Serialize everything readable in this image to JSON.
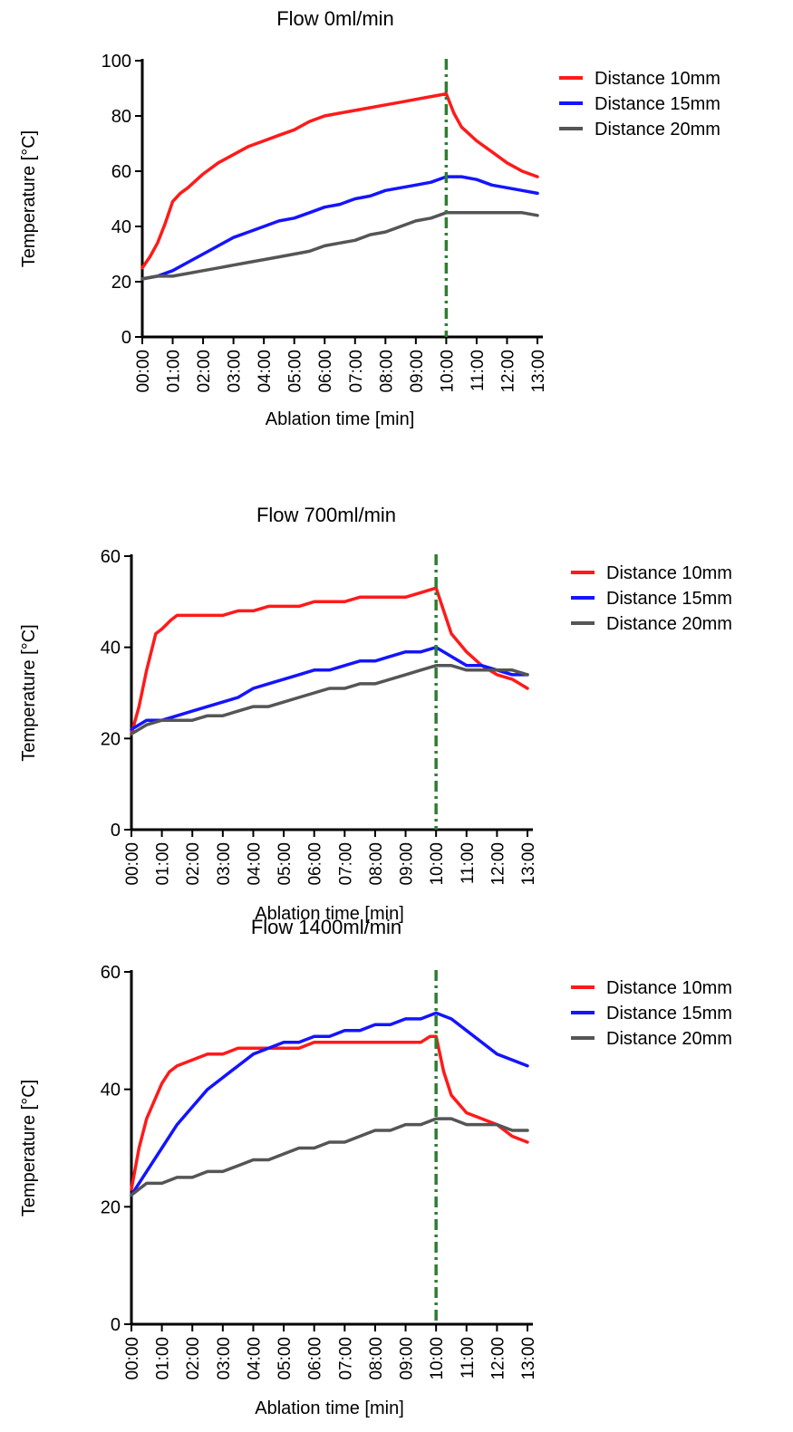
{
  "chart_data": [
    {
      "type": "line",
      "title": "Flow 0ml/min",
      "xlabel": "Ablation time [min]",
      "ylabel": "Temperature [°C]",
      "x_ticks": [
        "00:00",
        "01:00",
        "02:00",
        "03:00",
        "04:00",
        "05:00",
        "06:00",
        "07:00",
        "08:00",
        "09:00",
        "10:00",
        "11:00",
        "12:00",
        "13:00"
      ],
      "xlim": [
        0,
        13
      ],
      "ylim": [
        0,
        100
      ],
      "y_ticks": [
        0,
        20,
        40,
        60,
        80,
        100
      ],
      "marker_line": {
        "x": 10,
        "color": "#2e7d32",
        "style": "dash-dot"
      },
      "legend_position": "right",
      "series": [
        {
          "name": "Distance 10mm",
          "color": "#ff1a1a",
          "x": [
            0,
            0.25,
            0.5,
            0.75,
            1,
            1.25,
            1.5,
            2,
            2.5,
            3,
            3.5,
            4,
            4.5,
            5,
            5.5,
            6,
            6.5,
            7,
            7.5,
            8,
            8.5,
            9,
            9.5,
            10,
            10.25,
            10.5,
            11,
            11.5,
            12,
            12.5,
            13
          ],
          "y": [
            25,
            29,
            34,
            41,
            49,
            52,
            54,
            59,
            63,
            66,
            69,
            71,
            73,
            75,
            78,
            80,
            81,
            82,
            83,
            84,
            85,
            86,
            87,
            88,
            81,
            76,
            71,
            67,
            63,
            60,
            58
          ]
        },
        {
          "name": "Distance 15mm",
          "color": "#1414ff",
          "x": [
            0,
            0.5,
            1,
            1.5,
            2,
            2.5,
            3,
            3.5,
            4,
            4.5,
            5,
            5.5,
            6,
            6.5,
            7,
            7.5,
            8,
            8.5,
            9,
            9.5,
            10,
            10.5,
            11,
            11.5,
            12,
            12.5,
            13
          ],
          "y": [
            21,
            22,
            24,
            27,
            30,
            33,
            36,
            38,
            40,
            42,
            43,
            45,
            47,
            48,
            50,
            51,
            53,
            54,
            55,
            56,
            58,
            58,
            57,
            55,
            54,
            53,
            52
          ]
        },
        {
          "name": "Distance 20mm",
          "color": "#555555",
          "x": [
            0,
            0.5,
            1,
            1.5,
            2,
            2.5,
            3,
            3.5,
            4,
            4.5,
            5,
            5.5,
            6,
            6.5,
            7,
            7.5,
            8,
            8.5,
            9,
            9.5,
            10,
            10.5,
            11,
            11.5,
            12,
            12.5,
            13
          ],
          "y": [
            21,
            22,
            22,
            23,
            24,
            25,
            26,
            27,
            28,
            29,
            30,
            31,
            33,
            34,
            35,
            37,
            38,
            40,
            42,
            43,
            45,
            45,
            45,
            45,
            45,
            45,
            44
          ]
        }
      ]
    },
    {
      "type": "line",
      "title": "Flow 700ml/min",
      "xlabel": "Ablation time [min]",
      "ylabel": "Temperature [°C]",
      "x_ticks": [
        "00:00",
        "01:00",
        "02:00",
        "03:00",
        "04:00",
        "05:00",
        "06:00",
        "07:00",
        "08:00",
        "09:00",
        "10:00",
        "11:00",
        "12:00",
        "13:00"
      ],
      "xlim": [
        0,
        13
      ],
      "ylim": [
        0,
        60
      ],
      "y_ticks": [
        0,
        20,
        40,
        60
      ],
      "marker_line": {
        "x": 10,
        "color": "#2e7d32",
        "style": "dash-dot"
      },
      "legend_position": "right",
      "series": [
        {
          "name": "Distance 10mm",
          "color": "#ff1a1a",
          "x": [
            0,
            0.25,
            0.5,
            0.8,
            1,
            1.3,
            1.5,
            2,
            2.5,
            3,
            3.5,
            4,
            4.5,
            5,
            5.5,
            6,
            6.5,
            7,
            7.5,
            8,
            8.5,
            9,
            9.5,
            10,
            10.25,
            10.5,
            11,
            11.5,
            12,
            12.5,
            13
          ],
          "y": [
            21,
            27,
            35,
            43,
            44,
            46,
            47,
            47,
            47,
            47,
            48,
            48,
            49,
            49,
            49,
            50,
            50,
            50,
            51,
            51,
            51,
            51,
            52,
            53,
            48,
            43,
            39,
            36,
            34,
            33,
            31
          ]
        },
        {
          "name": "Distance 15mm",
          "color": "#1414ff",
          "x": [
            0,
            0.5,
            1,
            1.5,
            2,
            2.5,
            3,
            3.5,
            4,
            4.5,
            5,
            5.5,
            6,
            6.5,
            7,
            7.5,
            8,
            8.5,
            9,
            9.5,
            10,
            10.5,
            11,
            11.5,
            12,
            12.5,
            13
          ],
          "y": [
            22,
            24,
            24,
            25,
            26,
            27,
            28,
            29,
            31,
            32,
            33,
            34,
            35,
            35,
            36,
            37,
            37,
            38,
            39,
            39,
            40,
            38,
            36,
            36,
            35,
            34,
            34
          ]
        },
        {
          "name": "Distance 20mm",
          "color": "#555555",
          "x": [
            0,
            0.5,
            1,
            1.5,
            2,
            2.5,
            3,
            3.5,
            4,
            4.5,
            5,
            5.5,
            6,
            6.5,
            7,
            7.5,
            8,
            8.5,
            9,
            9.5,
            10,
            10.5,
            11,
            11.5,
            12,
            12.5,
            13
          ],
          "y": [
            21,
            23,
            24,
            24,
            24,
            25,
            25,
            26,
            27,
            27,
            28,
            29,
            30,
            31,
            31,
            32,
            32,
            33,
            34,
            35,
            36,
            36,
            35,
            35,
            35,
            35,
            34
          ]
        }
      ]
    },
    {
      "type": "line",
      "title": "Flow 1400ml/min",
      "xlabel": "Ablation time [min]",
      "ylabel": "Temperature [°C]",
      "x_ticks": [
        "00:00",
        "01:00",
        "02:00",
        "03:00",
        "04:00",
        "05:00",
        "06:00",
        "07:00",
        "08:00",
        "09:00",
        "10:00",
        "11:00",
        "12:00",
        "13:00"
      ],
      "xlim": [
        0,
        13
      ],
      "ylim": [
        0,
        60
      ],
      "y_ticks": [
        0,
        20,
        40,
        60
      ],
      "marker_line": {
        "x": 10,
        "color": "#2e7d32",
        "style": "dash-dot"
      },
      "legend_position": "right",
      "series": [
        {
          "name": "Distance 10mm",
          "color": "#ff1a1a",
          "x": [
            0,
            0.25,
            0.5,
            0.75,
            1,
            1.25,
            1.5,
            2,
            2.5,
            3,
            3.5,
            4,
            4.5,
            5,
            5.5,
            6,
            6.5,
            7,
            7.5,
            8,
            8.5,
            9,
            9.5,
            9.8,
            10,
            10.25,
            10.5,
            11,
            11.5,
            12,
            12.5,
            13
          ],
          "y": [
            23,
            30,
            35,
            38,
            41,
            43,
            44,
            45,
            46,
            46,
            47,
            47,
            47,
            47,
            47,
            48,
            48,
            48,
            48,
            48,
            48,
            48,
            48,
            49,
            49,
            43,
            39,
            36,
            35,
            34,
            32,
            31
          ]
        },
        {
          "name": "Distance 15mm",
          "color": "#1414ff",
          "x": [
            0,
            0.5,
            1,
            1.5,
            2,
            2.5,
            3,
            3.5,
            4,
            4.5,
            5,
            5.5,
            6,
            6.5,
            7,
            7.5,
            8,
            8.5,
            9,
            9.5,
            10,
            10.5,
            11,
            11.5,
            12,
            12.5,
            13
          ],
          "y": [
            22,
            26,
            30,
            34,
            37,
            40,
            42,
            44,
            46,
            47,
            48,
            48,
            49,
            49,
            50,
            50,
            51,
            51,
            52,
            52,
            53,
            52,
            50,
            48,
            46,
            45,
            44
          ]
        },
        {
          "name": "Distance 20mm",
          "color": "#555555",
          "x": [
            0,
            0.5,
            1,
            1.5,
            2,
            2.5,
            3,
            3.5,
            4,
            4.5,
            5,
            5.5,
            6,
            6.5,
            7,
            7.5,
            8,
            8.5,
            9,
            9.5,
            10,
            10.5,
            11,
            11.5,
            12,
            12.5,
            13
          ],
          "y": [
            22,
            24,
            24,
            25,
            25,
            26,
            26,
            27,
            28,
            28,
            29,
            30,
            30,
            31,
            31,
            32,
            33,
            33,
            34,
            34,
            35,
            35,
            34,
            34,
            34,
            33,
            33
          ]
        }
      ]
    }
  ]
}
